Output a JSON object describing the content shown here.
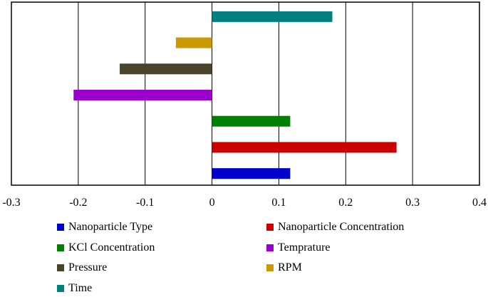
{
  "chart_data": {
    "type": "bar",
    "orientation": "horizontal",
    "title": "",
    "xlabel": "",
    "ylabel": "",
    "xlim": [
      -0.3,
      0.4
    ],
    "xticks": [
      "-0.3",
      "-0.2",
      "-0.1",
      "0",
      "0.1",
      "0.2",
      "0.3",
      "0.4"
    ],
    "grid": "vertical",
    "legend_position": "bottom",
    "series": [
      {
        "name": "Nanoparticle Type",
        "value": 0.117,
        "color": "#0000cc"
      },
      {
        "name": "Nanoparticle Concentration",
        "value": 0.276,
        "color": "#cc0000"
      },
      {
        "name": "KCl Concentration",
        "value": 0.117,
        "color": "#008000"
      },
      {
        "name": "Temprature",
        "value": -0.207,
        "color": "#9900cc"
      },
      {
        "name": "Pressure",
        "value": -0.138,
        "color": "#4a442c"
      },
      {
        "name": "RPM",
        "value": -0.054,
        "color": "#cc9900"
      },
      {
        "name": "Time",
        "value": 0.18,
        "color": "#008080"
      }
    ]
  }
}
